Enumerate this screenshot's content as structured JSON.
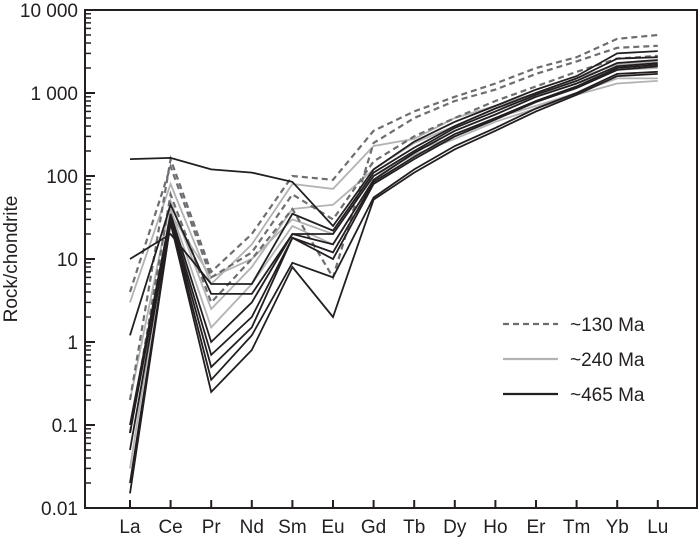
{
  "chart_data": {
    "type": "line",
    "title": "",
    "xlabel": "",
    "ylabel": "Rock/chondrite",
    "yscale": "log",
    "ylim": [
      0.01,
      10000
    ],
    "y_ticks": [
      0.01,
      0.1,
      1,
      10,
      100,
      1000,
      10000
    ],
    "y_tick_labels": [
      "0.01",
      "0.1",
      "1",
      "10",
      "100",
      "1 000",
      "10 000"
    ],
    "categories": [
      "La",
      "Ce",
      "Pr",
      "Nd",
      "Sm",
      "Eu",
      "Gd",
      "Tb",
      "Dy",
      "Ho",
      "Er",
      "Tm",
      "Yb",
      "Lu"
    ],
    "legend_position": "bottom-right",
    "legend": [
      {
        "label": "~130 Ma",
        "style": "dashed",
        "color": "#6d6e71"
      },
      {
        "label": "~240 Ma",
        "style": "solid",
        "color": "#b3b3b3"
      },
      {
        "label": "~465 Ma",
        "style": "solid",
        "color": "#231f20"
      }
    ],
    "series": [
      {
        "group": "~240 Ma",
        "values": [
          3,
          80,
          5,
          15,
          80,
          70,
          230,
          280,
          500,
          700,
          1000,
          1500,
          2200,
          2400
        ]
      },
      {
        "group": "~240 Ma",
        "values": [
          0.2,
          50,
          2.5,
          8,
          40,
          45,
          120,
          250,
          400,
          650,
          900,
          1300,
          1900,
          2000
        ]
      },
      {
        "group": "~240 Ma",
        "values": [
          0.03,
          40,
          1.5,
          5,
          25,
          15,
          90,
          200,
          300,
          500,
          700,
          1000,
          1500,
          1500
        ]
      },
      {
        "group": "~240 Ma",
        "values": [
          0.1,
          35,
          6,
          10,
          30,
          20,
          100,
          180,
          280,
          450,
          650,
          950,
          1300,
          1400
        ]
      },
      {
        "group": "~130 Ma",
        "values": [
          0.2,
          160,
          7,
          20,
          100,
          90,
          350,
          600,
          900,
          1300,
          2000,
          2700,
          4500,
          5000
        ]
      },
      {
        "group": "~130 Ma",
        "values": [
          0.08,
          60,
          3,
          10,
          40,
          6,
          250,
          500,
          800,
          1100,
          1700,
          2400,
          3500,
          3700
        ]
      },
      {
        "group": "~130 Ma",
        "values": [
          4,
          130,
          6,
          12,
          60,
          30,
          150,
          300,
          500,
          800,
          1200,
          1800,
          2600,
          2800
        ]
      },
      {
        "group": "~465 Ma",
        "values": [
          160,
          165,
          120,
          110,
          85,
          25,
          120,
          260,
          450,
          700,
          1100,
          1600,
          3000,
          3200
        ]
      },
      {
        "group": "~465 Ma",
        "values": [
          10,
          20,
          5,
          5,
          35,
          22,
          110,
          220,
          400,
          650,
          1000,
          1500,
          2600,
          2700
        ]
      },
      {
        "group": "~465 Ma",
        "values": [
          1.2,
          45,
          3.8,
          3.8,
          20,
          20,
          100,
          200,
          380,
          600,
          950,
          1400,
          2300,
          2500
        ]
      },
      {
        "group": "~465 Ma",
        "values": [
          0.1,
          35,
          1,
          3,
          20,
          15,
          90,
          190,
          350,
          550,
          900,
          1300,
          2100,
          2300
        ]
      },
      {
        "group": "~465 Ma",
        "values": [
          0.05,
          30,
          0.5,
          1.5,
          18,
          12,
          85,
          170,
          320,
          500,
          800,
          1200,
          2000,
          2200
        ]
      },
      {
        "group": "~465 Ma",
        "values": [
          0.02,
          28,
          0.35,
          1.2,
          9,
          6,
          55,
          120,
          230,
          380,
          650,
          1000,
          1700,
          1800
        ]
      },
      {
        "group": "~465 Ma",
        "values": [
          0.015,
          27,
          0.25,
          0.8,
          8,
          2,
          52,
          110,
          210,
          350,
          600,
          950,
          1600,
          1700
        ]
      },
      {
        "group": "~465 Ma",
        "values": [
          0.08,
          32,
          0.7,
          2,
          18,
          10,
          80,
          160,
          300,
          480,
          780,
          1150,
          1900,
          2100
        ]
      }
    ]
  }
}
